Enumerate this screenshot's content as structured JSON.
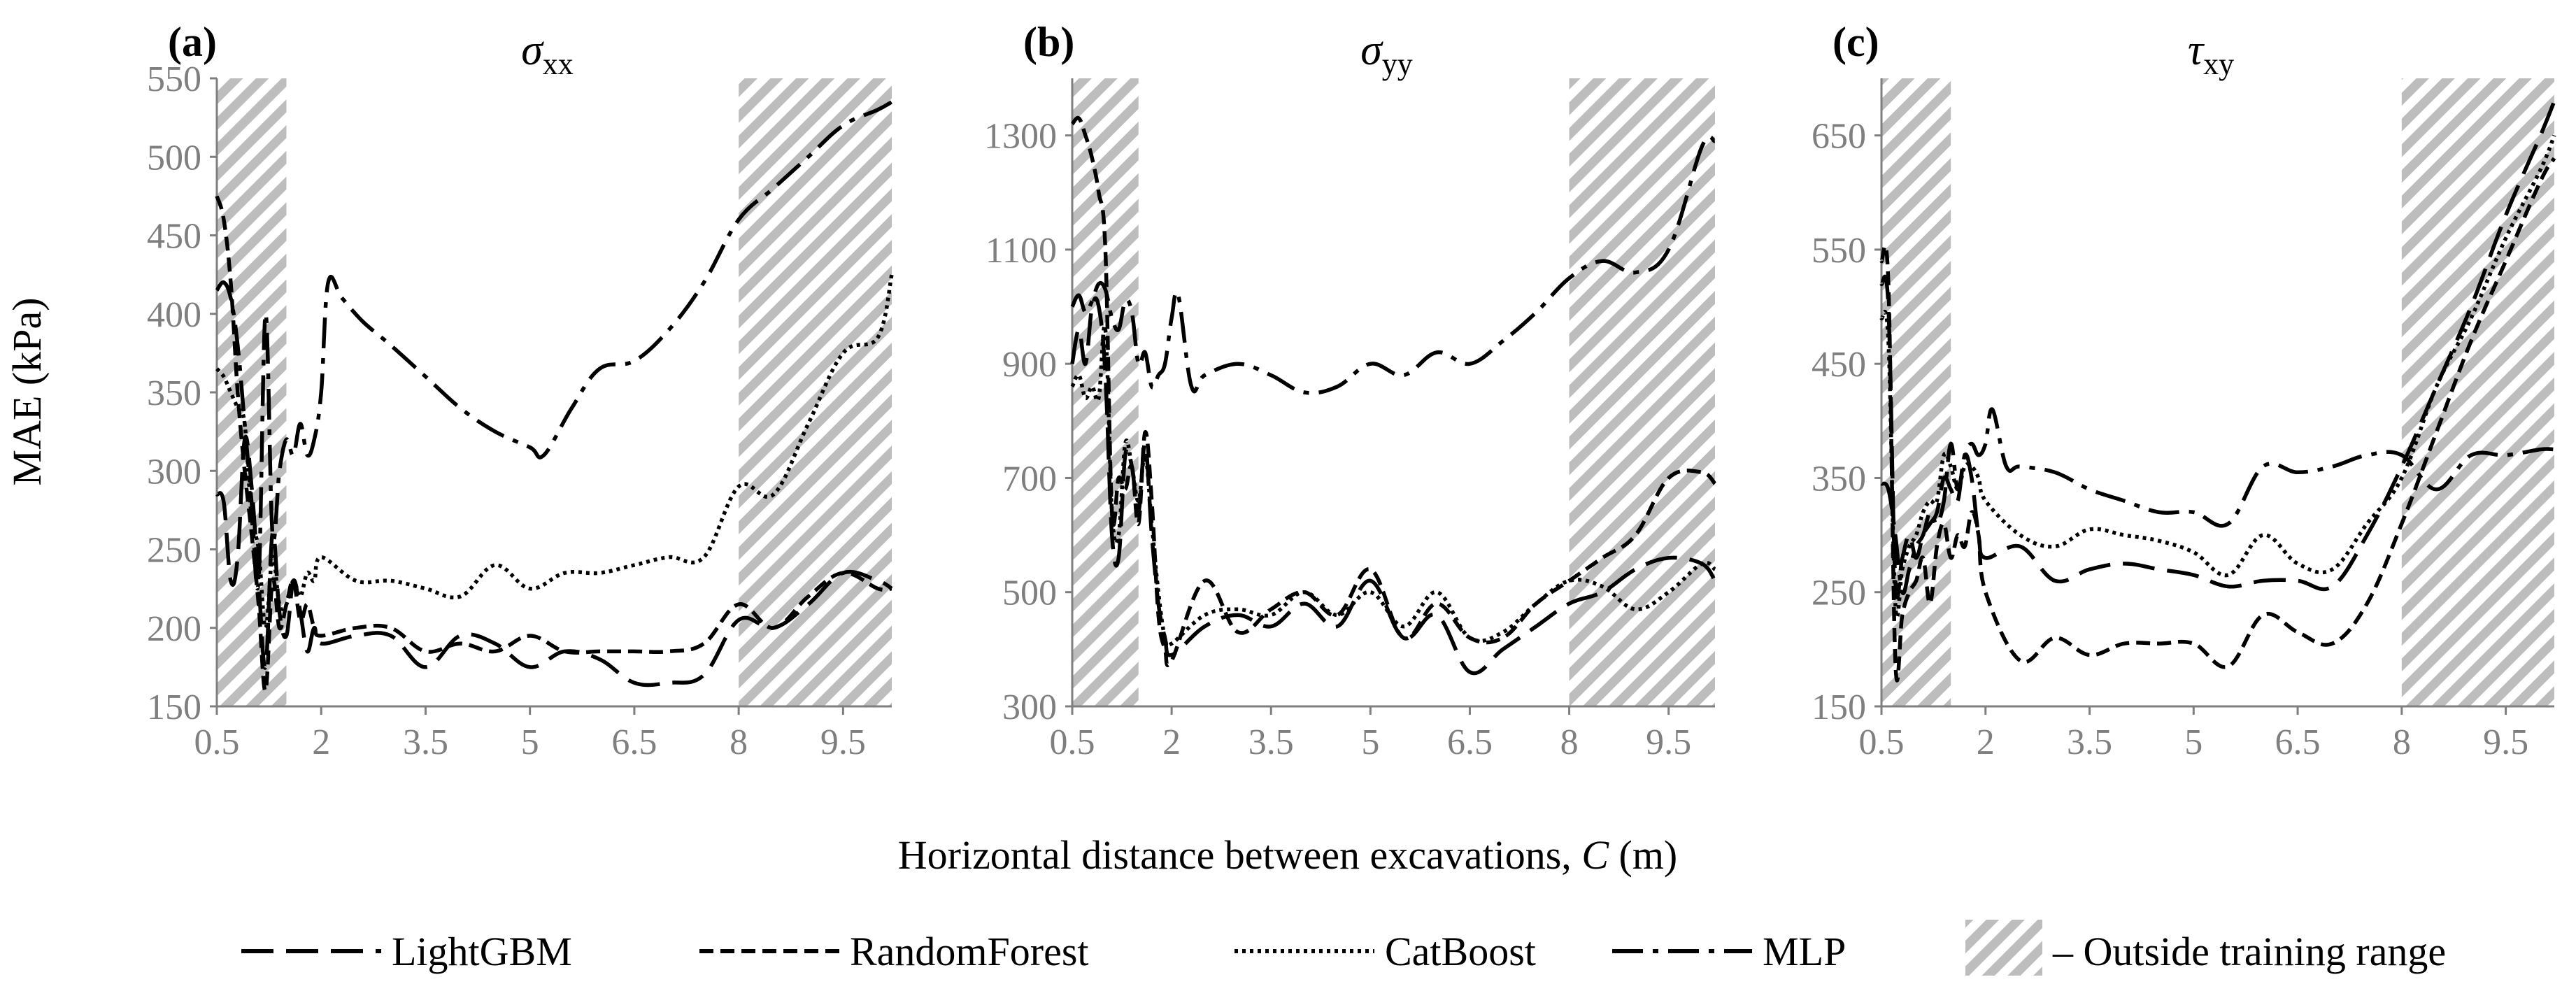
{
  "figure": {
    "ylabel": "MAE (kPa)",
    "xlabel_prefix": "Horizontal distance between excavations, ",
    "xlabel_var": "C",
    "xlabel_suffix": " (m)",
    "legend": [
      {
        "label": "LightGBM",
        "dash": "long-dash"
      },
      {
        "label": "RandomForest",
        "dash": "short-dash"
      },
      {
        "label": "CatBoost",
        "dash": "dotted"
      },
      {
        "label": "MLP",
        "dash": "dash-dot"
      },
      {
        "label": "– Outside training range",
        "dash": "hatch"
      }
    ]
  },
  "chart_data": [
    {
      "type": "line",
      "panel_label": "(a)",
      "title_symbol": "σ",
      "title_sub": "xx",
      "xlim": [
        0.5,
        10.2
      ],
      "ylim": [
        150,
        550
      ],
      "xticks": [
        0.5,
        2,
        3.5,
        5,
        6.5,
        8,
        9.5
      ],
      "yticks": [
        150,
        200,
        250,
        300,
        350,
        400,
        450,
        500,
        550
      ],
      "shaded_ranges": [
        [
          0.5,
          1.5
        ],
        [
          8,
          10.2
        ]
      ],
      "series": [
        {
          "name": "LightGBM",
          "x": [
            0.5,
            0.6,
            0.7,
            0.8,
            0.9,
            1.0,
            1.1,
            1.2,
            1.3,
            1.4,
            1.5,
            1.6,
            1.7,
            1.8,
            1.9,
            2.0,
            2.5,
            3.0,
            3.5,
            4.0,
            4.5,
            5.0,
            5.5,
            6.0,
            6.5,
            7.0,
            7.5,
            8.0,
            8.5,
            9.0,
            9.5,
            10.0,
            10.2
          ],
          "y": [
            285,
            280,
            230,
            245,
            320,
            290,
            230,
            175,
            260,
            210,
            195,
            230,
            210,
            185,
            200,
            190,
            195,
            195,
            175,
            195,
            190,
            175,
            185,
            180,
            165,
            165,
            170,
            205,
            200,
            215,
            235,
            230,
            225
          ]
        },
        {
          "name": "RandomForest",
          "x": [
            0.5,
            0.6,
            0.7,
            0.8,
            0.9,
            1.0,
            1.1,
            1.2,
            1.3,
            1.4,
            1.5,
            1.6,
            1.7,
            1.8,
            1.9,
            2.0,
            2.5,
            3.0,
            3.5,
            4.0,
            4.5,
            5.0,
            5.5,
            6.0,
            6.5,
            7.0,
            7.5,
            8.0,
            8.5,
            9.0,
            9.5,
            10.0,
            10.2
          ],
          "y": [
            475,
            460,
            420,
            350,
            300,
            260,
            215,
            160,
            230,
            200,
            215,
            230,
            205,
            215,
            200,
            195,
            200,
            200,
            185,
            190,
            185,
            195,
            185,
            185,
            185,
            185,
            190,
            215,
            200,
            220,
            235,
            225,
            225
          ]
        },
        {
          "name": "CatBoost",
          "x": [
            0.5,
            0.6,
            0.7,
            0.8,
            0.9,
            1.0,
            1.1,
            1.2,
            1.3,
            1.4,
            1.5,
            1.6,
            1.7,
            1.8,
            1.9,
            2.0,
            2.5,
            3.0,
            3.5,
            4.0,
            4.5,
            5.0,
            5.5,
            6.0,
            6.5,
            7.0,
            7.5,
            8.0,
            8.5,
            9.0,
            9.5,
            10.0,
            10.2
          ],
          "y": [
            365,
            360,
            350,
            340,
            330,
            270,
            250,
            200,
            245,
            215,
            215,
            230,
            220,
            235,
            230,
            245,
            230,
            230,
            225,
            220,
            240,
            225,
            235,
            235,
            240,
            245,
            245,
            290,
            285,
            330,
            375,
            385,
            425
          ]
        },
        {
          "name": "MLP",
          "x": [
            0.5,
            0.6,
            0.7,
            0.8,
            0.9,
            1.0,
            1.1,
            1.2,
            1.3,
            1.4,
            1.5,
            1.6,
            1.7,
            1.8,
            1.9,
            2.0,
            2.1,
            2.3,
            2.6,
            3.0,
            3.5,
            4.0,
            4.5,
            5.0,
            5.2,
            5.6,
            6.0,
            6.5,
            7.0,
            7.5,
            8.0,
            8.5,
            9.0,
            9.5,
            10.0,
            10.2
          ],
          "y": [
            415,
            420,
            410,
            380,
            330,
            280,
            230,
            400,
            260,
            300,
            320,
            310,
            330,
            310,
            320,
            350,
            420,
            410,
            395,
            380,
            360,
            340,
            325,
            315,
            310,
            340,
            365,
            370,
            390,
            420,
            460,
            480,
            500,
            520,
            530,
            535
          ]
        }
      ]
    },
    {
      "type": "line",
      "panel_label": "(b)",
      "title_symbol": "σ",
      "title_sub": "yy",
      "xlim": [
        0.5,
        10.2
      ],
      "ylim": [
        300,
        1400
      ],
      "xticks": [
        0.5,
        2,
        3.5,
        5,
        6.5,
        8,
        9.5
      ],
      "yticks": [
        300,
        500,
        700,
        900,
        1100,
        1300
      ],
      "shaded_ranges": [
        [
          0.5,
          1.5
        ],
        [
          8,
          10.2
        ]
      ],
      "series": [
        {
          "name": "LightGBM",
          "x": [
            0.5,
            0.6,
            0.7,
            0.8,
            0.9,
            1.0,
            1.1,
            1.2,
            1.3,
            1.4,
            1.5,
            1.6,
            1.7,
            1.8,
            1.9,
            2.0,
            2.5,
            3.0,
            3.5,
            4.0,
            4.5,
            5.0,
            5.5,
            6.0,
            6.5,
            7.0,
            7.5,
            8.0,
            8.5,
            9.0,
            9.5,
            10.0,
            10.2
          ],
          "y": [
            900,
            960,
            900,
            1000,
            1000,
            880,
            600,
            560,
            740,
            720,
            640,
            760,
            600,
            480,
            420,
            390,
            440,
            460,
            440,
            480,
            440,
            520,
            420,
            460,
            360,
            400,
            440,
            480,
            500,
            540,
            560,
            550,
            520
          ]
        },
        {
          "name": "RandomForest",
          "x": [
            0.5,
            0.6,
            0.7,
            0.8,
            0.9,
            1.0,
            1.1,
            1.2,
            1.3,
            1.4,
            1.5,
            1.6,
            1.7,
            1.8,
            1.9,
            2.0,
            2.5,
            3.0,
            3.5,
            4.0,
            4.5,
            5.0,
            5.5,
            6.0,
            6.5,
            7.0,
            7.5,
            8.0,
            8.5,
            9.0,
            9.5,
            10.0,
            10.2
          ],
          "y": [
            1320,
            1330,
            1300,
            1260,
            1200,
            1100,
            640,
            700,
            680,
            720,
            620,
            780,
            660,
            460,
            400,
            380,
            520,
            430,
            470,
            500,
            460,
            540,
            420,
            480,
            420,
            420,
            480,
            520,
            560,
            600,
            700,
            710,
            690
          ]
        },
        {
          "name": "CatBoost",
          "x": [
            0.5,
            0.6,
            0.7,
            0.8,
            0.9,
            1.0,
            1.1,
            1.2,
            1.3,
            1.4,
            1.5,
            1.6,
            1.7,
            1.8,
            1.9,
            2.0,
            2.5,
            3.0,
            3.5,
            4.0,
            4.5,
            5.0,
            5.5,
            6.0,
            6.5,
            7.0,
            7.5,
            8.0,
            8.5,
            9.0,
            9.5,
            10.0,
            10.2
          ],
          "y": [
            860,
            880,
            840,
            860,
            840,
            960,
            640,
            600,
            760,
            720,
            660,
            740,
            620,
            500,
            420,
            410,
            460,
            470,
            460,
            500,
            460,
            500,
            440,
            500,
            420,
            430,
            480,
            520,
            510,
            470,
            500,
            550,
            540
          ]
        },
        {
          "name": "MLP",
          "x": [
            0.5,
            0.6,
            0.7,
            0.8,
            0.9,
            1.0,
            1.1,
            1.2,
            1.3,
            1.4,
            1.5,
            1.6,
            1.7,
            1.8,
            1.9,
            2.0,
            2.1,
            2.3,
            2.5,
            3.0,
            3.5,
            4.0,
            4.5,
            5.0,
            5.5,
            6.0,
            6.5,
            7.0,
            7.5,
            8.0,
            8.5,
            9.0,
            9.5,
            10.0,
            10.2
          ],
          "y": [
            1000,
            1020,
            990,
            1010,
            1040,
            1030,
            980,
            960,
            1010,
            990,
            900,
            920,
            860,
            880,
            900,
            980,
            1020,
            860,
            880,
            900,
            880,
            850,
            860,
            900,
            880,
            920,
            900,
            940,
            990,
            1050,
            1080,
            1060,
            1100,
            1280,
            1290
          ]
        }
      ]
    },
    {
      "type": "line",
      "panel_label": "(c)",
      "title_symbol": "τ",
      "title_sub": "xy",
      "xlim": [
        0.5,
        10.2
      ],
      "ylim": [
        150,
        700
      ],
      "xticks": [
        0.5,
        2,
        3.5,
        5,
        6.5,
        8,
        9.5
      ],
      "yticks": [
        150,
        250,
        350,
        450,
        550,
        650
      ],
      "shaded_ranges": [
        [
          0.5,
          1.5
        ],
        [
          8,
          10.2
        ]
      ],
      "series": [
        {
          "name": "LightGBM",
          "x": [
            0.5,
            0.6,
            0.7,
            0.8,
            0.9,
            1.0,
            1.1,
            1.2,
            1.3,
            1.4,
            1.5,
            1.6,
            1.7,
            1.8,
            1.9,
            2.0,
            2.5,
            3.0,
            3.5,
            4.0,
            4.5,
            5.0,
            5.5,
            6.0,
            6.5,
            7.0,
            7.5,
            8.0,
            8.5,
            9.0,
            9.5,
            10.0,
            10.2
          ],
          "y": [
            520,
            500,
            260,
            280,
            300,
            280,
            300,
            310,
            320,
            350,
            340,
            330,
            370,
            350,
            300,
            280,
            290,
            260,
            270,
            275,
            270,
            265,
            255,
            260,
            260,
            255,
            300,
            360,
            430,
            500,
            580,
            650,
            680
          ]
        },
        {
          "name": "RandomForest",
          "x": [
            0.5,
            0.6,
            0.7,
            0.8,
            0.9,
            1.0,
            1.1,
            1.2,
            1.3,
            1.4,
            1.5,
            1.6,
            1.7,
            1.8,
            1.9,
            2.0,
            2.5,
            3.0,
            3.5,
            4.0,
            4.5,
            5.0,
            5.5,
            6.0,
            6.5,
            7.0,
            7.5,
            8.0,
            8.5,
            9.0,
            9.5,
            10.0,
            10.2
          ],
          "y": [
            540,
            520,
            190,
            230,
            250,
            260,
            280,
            240,
            290,
            310,
            280,
            300,
            290,
            320,
            300,
            250,
            190,
            210,
            195,
            205,
            205,
            205,
            185,
            230,
            215,
            205,
            240,
            310,
            390,
            470,
            540,
            610,
            630
          ]
        },
        {
          "name": "CatBoost",
          "x": [
            0.5,
            0.6,
            0.7,
            0.8,
            0.9,
            1.0,
            1.1,
            1.2,
            1.3,
            1.4,
            1.5,
            1.6,
            1.7,
            1.8,
            1.9,
            2.0,
            2.5,
            3.0,
            3.5,
            4.0,
            4.5,
            5.0,
            5.5,
            6.0,
            6.5,
            7.0,
            7.5,
            8.0,
            8.5,
            9.0,
            9.5,
            10.0,
            10.2
          ],
          "y": [
            490,
            470,
            240,
            270,
            290,
            300,
            320,
            330,
            330,
            370,
            360,
            340,
            360,
            360,
            350,
            330,
            300,
            290,
            305,
            300,
            295,
            285,
            265,
            300,
            275,
            270,
            310,
            350,
            430,
            490,
            560,
            620,
            650
          ]
        },
        {
          "name": "MLP",
          "x": [
            0.5,
            0.6,
            0.7,
            0.8,
            0.9,
            1.0,
            1.1,
            1.2,
            1.3,
            1.4,
            1.5,
            1.6,
            1.7,
            1.8,
            1.9,
            2.0,
            2.1,
            2.3,
            2.5,
            3.0,
            3.5,
            4.0,
            4.5,
            5.0,
            5.5,
            6.0,
            6.5,
            7.0,
            7.5,
            8.0,
            8.5,
            9.0,
            9.5,
            10.0,
            10.2
          ],
          "y": [
            345,
            340,
            300,
            250,
            270,
            290,
            300,
            320,
            310,
            330,
            380,
            340,
            370,
            380,
            370,
            380,
            410,
            360,
            360,
            355,
            340,
            330,
            320,
            320,
            310,
            360,
            355,
            360,
            370,
            370,
            340,
            370,
            370,
            375,
            375
          ]
        }
      ]
    }
  ]
}
